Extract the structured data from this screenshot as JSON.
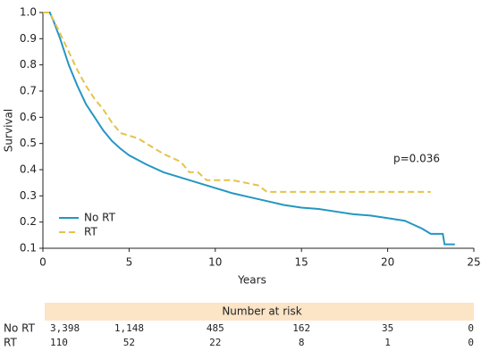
{
  "chart_data": {
    "type": "line",
    "x_label": "Years",
    "y_label": "Survival",
    "xlim": [
      0,
      25
    ],
    "xticks": [
      0,
      5,
      10,
      15,
      20,
      25
    ],
    "ylim": [
      0.1,
      1.0
    ],
    "yticks": [
      0.1,
      0.2,
      0.3,
      0.4,
      0.5,
      0.6,
      0.7,
      0.8,
      0.9,
      {
        "value": 1.0,
        "label": "1.0"
      }
    ],
    "legend": "lower left",
    "annotation": "p=0.036",
    "series": [
      {
        "name": "No RT",
        "color": "#2596c2",
        "dash": false,
        "x": [
          0,
          0.4,
          0.6,
          1,
          1.5,
          2,
          2.5,
          3,
          3.5,
          4,
          4.5,
          5,
          6,
          7,
          8,
          9,
          10,
          11,
          12,
          13,
          14,
          15,
          16,
          17,
          18,
          19,
          20,
          21,
          21.5,
          22,
          22.5,
          23.2,
          23.3,
          23.9
        ],
        "values": [
          1.0,
          1.0,
          0.97,
          0.9,
          0.8,
          0.72,
          0.65,
          0.6,
          0.55,
          0.51,
          0.48,
          0.455,
          0.42,
          0.39,
          0.37,
          0.35,
          0.33,
          0.31,
          0.295,
          0.28,
          0.265,
          0.255,
          0.25,
          0.24,
          0.23,
          0.225,
          0.215,
          0.205,
          0.19,
          0.175,
          0.155,
          0.155,
          0.115,
          0.115
        ]
      },
      {
        "name": "RT",
        "color": "#e6c24a",
        "dash": true,
        "x": [
          0,
          0.4,
          1,
          1.5,
          2,
          2.5,
          3,
          3.5,
          4,
          4.5,
          5.5,
          6,
          6.5,
          7,
          8,
          8.5,
          9,
          9.5,
          11,
          12.5,
          13,
          22.5
        ],
        "values": [
          1.0,
          1.0,
          0.92,
          0.85,
          0.78,
          0.72,
          0.67,
          0.63,
          0.58,
          0.54,
          0.52,
          0.5,
          0.48,
          0.46,
          0.43,
          0.39,
          0.39,
          0.36,
          0.36,
          0.34,
          0.315,
          0.315
        ]
      }
    ]
  },
  "risk_table": {
    "title": "Number at risk",
    "rows": [
      {
        "name": "No RT",
        "values": [
          3398,
          1148,
          485,
          162,
          35,
          0
        ],
        "value_labels": [
          "3,398",
          "1,148",
          "485",
          "162",
          "35",
          "0"
        ]
      },
      {
        "name": "RT",
        "values": [
          110,
          52,
          22,
          8,
          1,
          0
        ]
      }
    ]
  }
}
